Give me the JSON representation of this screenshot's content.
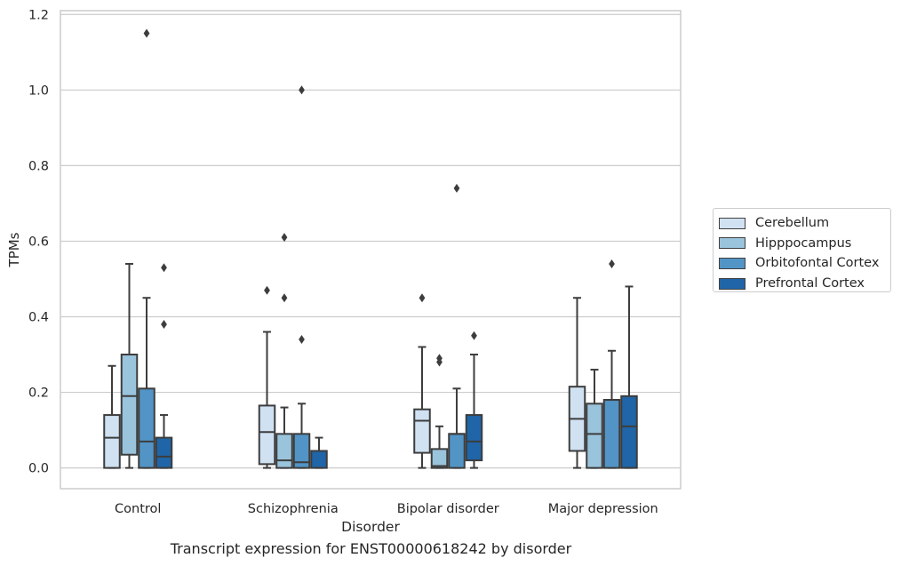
{
  "chart_data": {
    "type": "box",
    "title": "",
    "xlabel": "Disorder",
    "ylabel": "TPMs",
    "caption": "Transcript expression for ENST00000618242 by disorder",
    "ylim": [
      -0.055,
      1.21
    ],
    "yticks": [
      "0.0",
      "0.2",
      "0.4",
      "0.6",
      "0.8",
      "1.0",
      "1.2"
    ],
    "grid": "horizontal",
    "legend_position": "right",
    "categories": [
      "Control",
      "Schizophrenia",
      "Bipolar disorder",
      "Major depression"
    ],
    "series": [
      {
        "name": "Cerebellum",
        "color": "#d0e1f2",
        "boxes": [
          {
            "min": 0,
            "q1": 0,
            "median": 0.08,
            "q3": 0.14,
            "max": 0.27,
            "outliers": []
          },
          {
            "min": 0,
            "q1": 0.01,
            "median": 0.095,
            "q3": 0.165,
            "max": 0.36,
            "outliers": [
              0.47
            ]
          },
          {
            "min": 0,
            "q1": 0.04,
            "median": 0.125,
            "q3": 0.155,
            "max": 0.32,
            "outliers": [
              0.45
            ]
          },
          {
            "min": 0,
            "q1": 0.045,
            "median": 0.13,
            "q3": 0.215,
            "max": 0.45,
            "outliers": []
          }
        ]
      },
      {
        "name": "Hipppocampus",
        "color": "#9ac3dc",
        "boxes": [
          {
            "min": 0,
            "q1": 0.035,
            "median": 0.19,
            "q3": 0.3,
            "max": 0.54,
            "outliers": []
          },
          {
            "min": 0,
            "q1": 0,
            "median": 0.02,
            "q3": 0.09,
            "max": 0.16,
            "outliers": [
              0.45,
              0.61
            ]
          },
          {
            "min": 0,
            "q1": 0,
            "median": 0.005,
            "q3": 0.05,
            "max": 0.11,
            "outliers": [
              0.28,
              0.29
            ]
          },
          {
            "min": 0,
            "q1": 0,
            "median": 0.09,
            "q3": 0.17,
            "max": 0.26,
            "outliers": []
          }
        ]
      },
      {
        "name": "Orbitofontal Cortex",
        "color": "#5294c5",
        "boxes": [
          {
            "min": 0,
            "q1": 0,
            "median": 0.07,
            "q3": 0.21,
            "max": 0.45,
            "outliers": [
              1.15
            ]
          },
          {
            "min": 0,
            "q1": 0,
            "median": 0.015,
            "q3": 0.09,
            "max": 0.17,
            "outliers": [
              0.34,
              1.0
            ]
          },
          {
            "min": 0,
            "q1": 0,
            "median": 0.09,
            "q3": 0.09,
            "max": 0.21,
            "outliers": [
              0.74
            ]
          },
          {
            "min": 0,
            "q1": 0,
            "median": 0.18,
            "q3": 0.18,
            "max": 0.31,
            "outliers": [
              0.54
            ]
          }
        ]
      },
      {
        "name": "Prefrontal Cortex",
        "color": "#1f65a7",
        "boxes": [
          {
            "min": 0,
            "q1": 0,
            "median": 0.03,
            "q3": 0.08,
            "max": 0.14,
            "outliers": [
              0.38,
              0.53
            ]
          },
          {
            "min": 0,
            "q1": 0,
            "median": 0.045,
            "q3": 0.045,
            "max": 0.08,
            "outliers": []
          },
          {
            "min": 0,
            "q1": 0.02,
            "median": 0.07,
            "q3": 0.14,
            "max": 0.3,
            "outliers": [
              0.35
            ]
          },
          {
            "min": 0,
            "q1": 0,
            "median": 0.11,
            "q3": 0.19,
            "max": 0.48,
            "outliers": []
          }
        ]
      }
    ]
  }
}
